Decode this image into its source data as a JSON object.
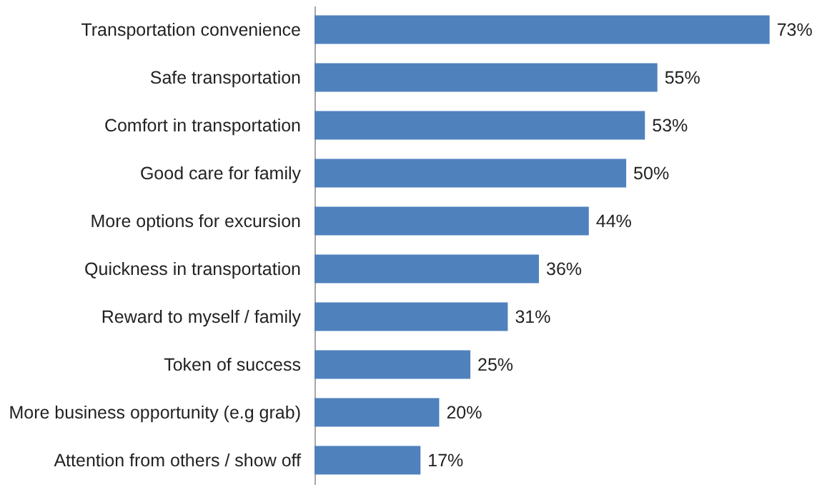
{
  "chart_data": {
    "type": "bar",
    "orientation": "horizontal",
    "categories": [
      "Transportation convenience",
      "Safe transportation",
      "Comfort in transportation",
      "Good care for family",
      "More options for excursion",
      "Quickness in transportation",
      "Reward to myself / family",
      "Token of success",
      "More business opportunity (e.g grab)",
      "Attention from others / show off"
    ],
    "values": [
      73,
      55,
      53,
      50,
      44,
      36,
      31,
      25,
      20,
      17
    ],
    "value_labels": [
      "73%",
      "55%",
      "53%",
      "50%",
      "44%",
      "36%",
      "31%",
      "25%",
      "20%",
      "17%"
    ],
    "color": "#4f81bd"
  }
}
